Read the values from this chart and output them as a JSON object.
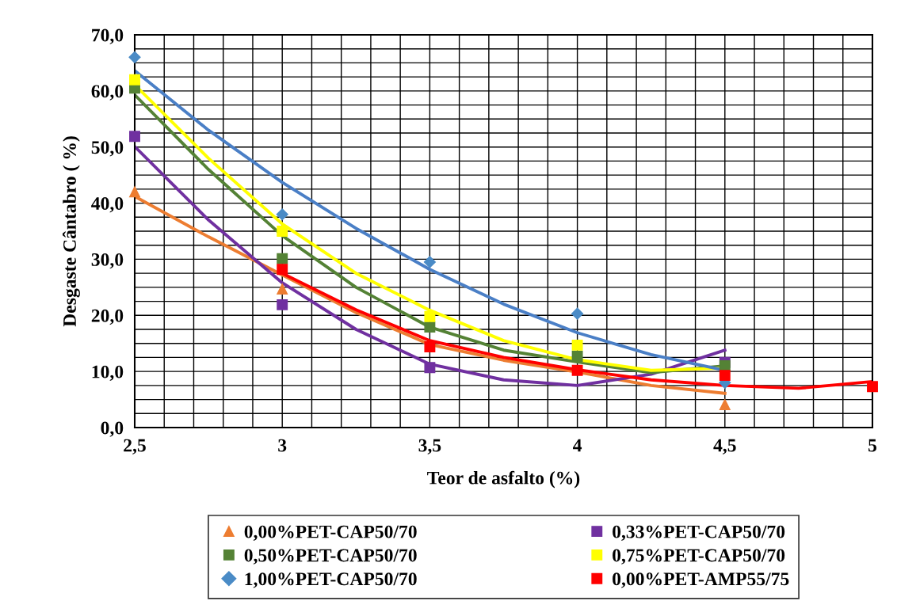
{
  "chart_data": {
    "type": "scatter",
    "xlabel": "Teor de asfalto (%)",
    "ylabel": "Desgaste Cântabro ( %)",
    "xlim": [
      2.5,
      5
    ],
    "ylim": [
      0,
      70
    ],
    "xticks": [
      {
        "value": 2.5,
        "label": "2,5"
      },
      {
        "value": 2.6,
        "label": null
      },
      {
        "value": 2.7,
        "label": null
      },
      {
        "value": 2.8,
        "label": null
      },
      {
        "value": 2.9,
        "label": null
      },
      {
        "value": 3.0,
        "label": "3"
      },
      {
        "value": 3.1,
        "label": null
      },
      {
        "value": 3.2,
        "label": null
      },
      {
        "value": 3.3,
        "label": null
      },
      {
        "value": 3.4,
        "label": null
      },
      {
        "value": 3.5,
        "label": "3,5"
      },
      {
        "value": 3.6,
        "label": null
      },
      {
        "value": 3.7,
        "label": null
      },
      {
        "value": 3.8,
        "label": null
      },
      {
        "value": 3.9,
        "label": null
      },
      {
        "value": 4.0,
        "label": "4"
      },
      {
        "value": 4.1,
        "label": null
      },
      {
        "value": 4.2,
        "label": null
      },
      {
        "value": 4.3,
        "label": null
      },
      {
        "value": 4.4,
        "label": null
      },
      {
        "value": 4.5,
        "label": "4,5"
      },
      {
        "value": 4.6,
        "label": null
      },
      {
        "value": 4.7,
        "label": null
      },
      {
        "value": 4.8,
        "label": null
      },
      {
        "value": 4.9,
        "label": null
      },
      {
        "value": 5.0,
        "label": "5"
      }
    ],
    "yticks": [
      {
        "value": 0,
        "label": "0,0"
      },
      {
        "value": 2.5,
        "label": null
      },
      {
        "value": 5,
        "label": null
      },
      {
        "value": 7.5,
        "label": null
      },
      {
        "value": 10,
        "label": "10,0"
      },
      {
        "value": 12.5,
        "label": null
      },
      {
        "value": 15,
        "label": null
      },
      {
        "value": 17.5,
        "label": null
      },
      {
        "value": 20,
        "label": "20,0"
      },
      {
        "value": 22.5,
        "label": null
      },
      {
        "value": 25,
        "label": null
      },
      {
        "value": 27.5,
        "label": null
      },
      {
        "value": 30,
        "label": "30,0"
      },
      {
        "value": 32.5,
        "label": null
      },
      {
        "value": 35,
        "label": null
      },
      {
        "value": 37.5,
        "label": null
      },
      {
        "value": 40,
        "label": "40,0"
      },
      {
        "value": 42.5,
        "label": null
      },
      {
        "value": 45,
        "label": null
      },
      {
        "value": 47.5,
        "label": null
      },
      {
        "value": 50,
        "label": "50,0"
      },
      {
        "value": 52.5,
        "label": null
      },
      {
        "value": 55,
        "label": null
      },
      {
        "value": 57.5,
        "label": null
      },
      {
        "value": 60,
        "label": "60,0"
      },
      {
        "value": 62.5,
        "label": null
      },
      {
        "value": 65,
        "label": null
      },
      {
        "value": 67.5,
        "label": null
      },
      {
        "value": 70,
        "label": "70,0"
      }
    ],
    "grid": true,
    "legend": "bottom",
    "series": [
      {
        "name": "0,00%PET-CAP50/70",
        "color": "#ed7d31",
        "marker": "triangle",
        "x": [
          2.5,
          3.0,
          4.5
        ],
        "values": [
          42,
          24.7,
          4.1
        ]
      },
      {
        "name": "0,33%PET-CAP50/70",
        "color": "#7030a0",
        "marker": "square",
        "x": [
          2.5,
          3.0,
          3.5,
          4.5
        ],
        "values": [
          51.9,
          21.9,
          10.7,
          11.6
        ]
      },
      {
        "name": "0,50%PET-CAP50/70",
        "color": "#548235",
        "marker": "square",
        "x": [
          2.5,
          3.0,
          3.5,
          4.0,
          4.5
        ],
        "values": [
          60.5,
          30.1,
          17.9,
          12.7,
          11.0
        ]
      },
      {
        "name": "0,75%PET-CAP50/70",
        "color": "#ffff00",
        "marker": "square",
        "x": [
          2.5,
          3.0,
          3.5,
          4.0
        ],
        "values": [
          62,
          35,
          19.8,
          14.7
        ]
      },
      {
        "name": "1,00%PET-CAP50/70",
        "color": "#4a8bc6",
        "marker": "diamond",
        "x": [
          2.5,
          3.0,
          3.5,
          4.0,
          4.5
        ],
        "values": [
          66,
          38,
          29.5,
          20.3,
          8.0
        ]
      },
      {
        "name": "0,00%PET-AMP55/75",
        "color": "#ff0000",
        "marker": "square",
        "x": [
          3.0,
          3.5,
          4.0,
          4.5,
          5.0
        ],
        "values": [
          28.2,
          14.4,
          10.2,
          9.3,
          7.3
        ]
      },
      {
        "type": "line",
        "color": "#ed7d31",
        "marker": "none",
        "x": [
          2.5,
          2.75,
          3.0,
          3.25,
          3.5,
          3.75,
          4.0,
          4.25,
          4.5
        ],
        "values": [
          41.2,
          34,
          27.2,
          20.5,
          14.8,
          12,
          9.9,
          7.5,
          6.1
        ]
      },
      {
        "type": "line",
        "color": "#7030a0",
        "marker": "none",
        "x": [
          2.5,
          2.75,
          3.0,
          3.25,
          3.5,
          3.75,
          4.0,
          4.25,
          4.5
        ],
        "values": [
          50.1,
          37,
          25.8,
          17.5,
          11.3,
          8.5,
          7.5,
          9.5,
          13.8
        ]
      },
      {
        "type": "line",
        "color": "#548235",
        "marker": "none",
        "x": [
          2.5,
          2.75,
          3.0,
          3.25,
          3.5,
          3.75,
          4.0,
          4.25,
          4.5
        ],
        "values": [
          59.3,
          46,
          34.2,
          25,
          17.9,
          13.8,
          11.7,
          9.8,
          11.0
        ]
      },
      {
        "type": "line",
        "color": "#ffff00",
        "marker": "none",
        "x": [
          2.5,
          2.75,
          3.0,
          3.25,
          3.5,
          3.75,
          4.0,
          4.25,
          4.5
        ],
        "values": [
          61.1,
          48,
          36.3,
          27.5,
          20.9,
          15.5,
          12.1,
          10.2,
          10.6
        ]
      },
      {
        "type": "line",
        "color": "#4a7fc6",
        "marker": "none",
        "x": [
          2.5,
          2.75,
          3.0,
          3.25,
          3.5,
          3.75,
          4.0,
          4.25,
          4.5
        ],
        "values": [
          63.6,
          53,
          43.7,
          35.5,
          28.2,
          22,
          16.9,
          13,
          10.2
        ]
      },
      {
        "type": "line",
        "color": "#ff0000",
        "marker": "none",
        "x": [
          3.0,
          3.25,
          3.5,
          3.75,
          4.0,
          4.25,
          4.5,
          4.75,
          5.0
        ],
        "values": [
          27.5,
          21,
          15.5,
          12.5,
          10.3,
          8.5,
          7.5,
          7.0,
          8.2
        ]
      }
    ]
  }
}
